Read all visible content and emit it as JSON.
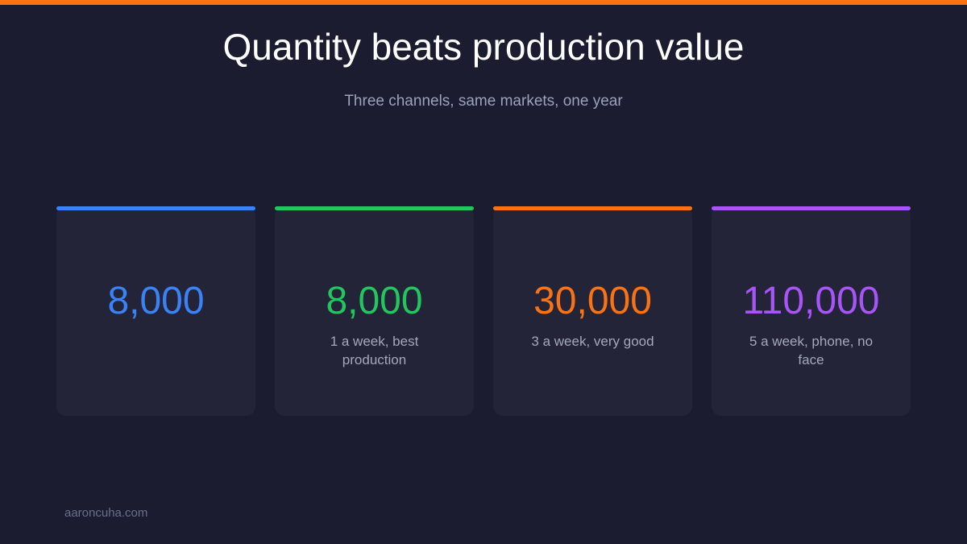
{
  "header": {
    "title": "Quantity beats production value",
    "subtitle": "Three channels, same markets, one year"
  },
  "cards": [
    {
      "value": "8,000",
      "color": "#3b82f6"
    },
    {
      "value": "8,000",
      "label": "1 a week, best production",
      "color": "#22c55e"
    },
    {
      "value": "30,000",
      "label": "3 a week, very good",
      "color": "#f97316"
    },
    {
      "value": "110,000",
      "label": "5 a week, phone, no face",
      "color": "#a855f7"
    }
  ],
  "footer": "aaroncuha.com"
}
